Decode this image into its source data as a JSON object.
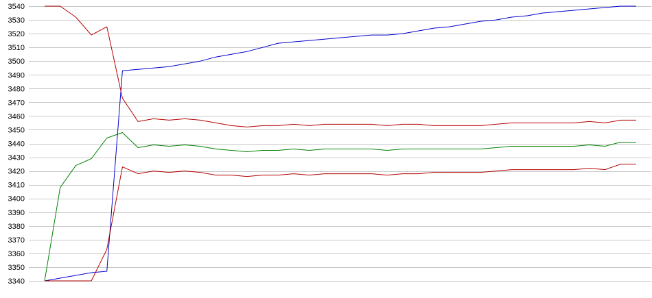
{
  "chart_data": {
    "type": "line",
    "title": "",
    "xlabel": "",
    "ylabel": "",
    "ylim": [
      3340,
      3540
    ],
    "y_ticks": [
      3340,
      3350,
      3360,
      3370,
      3380,
      3390,
      3400,
      3410,
      3420,
      3430,
      3440,
      3450,
      3460,
      3470,
      3480,
      3490,
      3500,
      3510,
      3520,
      3530,
      3540
    ],
    "x": [
      0,
      1,
      2,
      3,
      4,
      5,
      6,
      7,
      8,
      9,
      10,
      11,
      12,
      13,
      14,
      15,
      16,
      17,
      18,
      19,
      20,
      21,
      22,
      23,
      24,
      25,
      26,
      27,
      28,
      29,
      30,
      31,
      32,
      33,
      34,
      35,
      36,
      37,
      38
    ],
    "xlim": [
      0,
      38
    ],
    "grid": "horizontal",
    "legend": "none",
    "series": [
      {
        "color": "#0000cc",
        "values": [
          3340,
          3342,
          3344,
          3346,
          3347,
          3493,
          3494,
          3495,
          3496,
          3498,
          3500,
          3503,
          3505,
          3507,
          3510,
          3513,
          3514,
          3515,
          3516,
          3517,
          3518,
          3519,
          3519,
          3520,
          3522,
          3524,
          3525,
          3527,
          3529,
          3530,
          3532,
          3533,
          3535,
          3536,
          3537,
          3538,
          3539,
          3540,
          3540
        ]
      },
      {
        "color": "#b30000",
        "values": [
          3540,
          3540,
          3532,
          3519,
          3525,
          3473,
          3456,
          3458,
          3457,
          3458,
          3457,
          3455,
          3453,
          3452,
          3453,
          3453,
          3454,
          3453,
          3454,
          3454,
          3454,
          3454,
          3453,
          3454,
          3454,
          3453,
          3453,
          3453,
          3453,
          3454,
          3455,
          3455,
          3455,
          3455,
          3455,
          3456,
          3455,
          3457,
          3457
        ]
      },
      {
        "color": "#008000",
        "values": [
          3340,
          3408,
          3424,
          3429,
          3444,
          3448,
          3437,
          3439,
          3438,
          3439,
          3438,
          3436,
          3435,
          3434,
          3435,
          3435,
          3436,
          3435,
          3436,
          3436,
          3436,
          3436,
          3435,
          3436,
          3436,
          3436,
          3436,
          3436,
          3436,
          3437,
          3438,
          3438,
          3438,
          3438,
          3438,
          3439,
          3438,
          3441,
          3441
        ]
      },
      {
        "color": "#b30000",
        "values": [
          3340,
          3340,
          3340,
          3340,
          3363,
          3423,
          3418,
          3420,
          3419,
          3420,
          3419,
          3417,
          3417,
          3416,
          3417,
          3417,
          3418,
          3417,
          3418,
          3418,
          3418,
          3418,
          3417,
          3418,
          3418,
          3419,
          3419,
          3419,
          3419,
          3420,
          3421,
          3421,
          3421,
          3421,
          3421,
          3422,
          3421,
          3425,
          3425
        ]
      }
    ]
  }
}
